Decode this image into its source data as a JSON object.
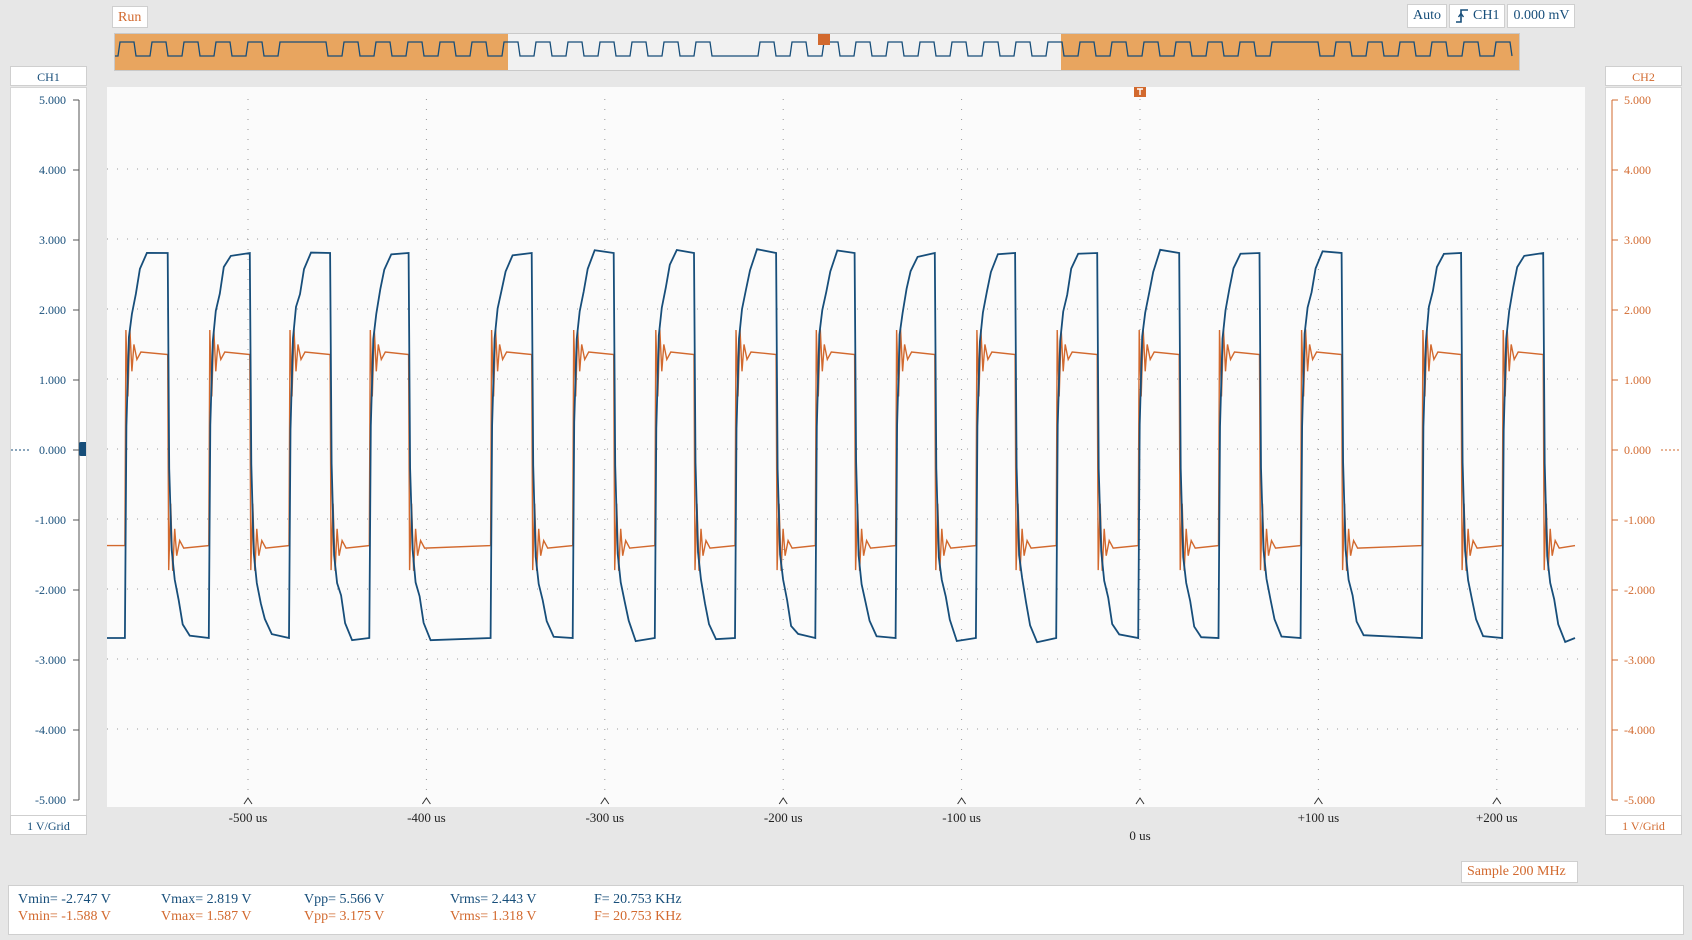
{
  "status": {
    "run_label": "Run"
  },
  "trigger": {
    "mode": "Auto",
    "source": "CH1",
    "level": "0.000 mV"
  },
  "channels": {
    "ch1": {
      "label": "CH1",
      "scale": "1 V/Grid",
      "color": "#174e7a"
    },
    "ch2": {
      "label": "CH2",
      "scale": "1 V/Grid",
      "color": "#d2692e"
    }
  },
  "y_axis_ticks": [
    "5.000",
    "4.000",
    "3.000",
    "2.000",
    "1.000",
    "0.000",
    "-1.000",
    "-2.000",
    "-3.000",
    "-4.000",
    "-5.000"
  ],
  "x_axis_ticks": [
    "-500 us",
    "-400 us",
    "-300 us",
    "-200 us",
    "-100 us",
    "0 us",
    "+100 us",
    "+200 us"
  ],
  "sample_rate": "Sample 200 MHz",
  "measurements": {
    "ch1": {
      "vmin": "Vmin= -2.747 V",
      "vmax": "Vmax= 2.819 V",
      "vpp": "Vpp= 5.566 V",
      "vrms": "Vrms= 2.443 V",
      "freq": "F= 20.753 KHz"
    },
    "ch2": {
      "vmin": "Vmin= -1.588 V",
      "vmax": "Vmax= 1.587 V",
      "vpp": "Vpp= 3.175 V",
      "vrms": "Vrms= 1.318 V",
      "freq": "F= 20.753 KHz"
    }
  },
  "chart_data": {
    "type": "line",
    "xlim_us": [
      -575,
      245
    ],
    "ylim": [
      -5,
      5
    ],
    "series": [
      {
        "name": "CH1",
        "color": "#174e7a",
        "high_v": 2.8,
        "low_v": -2.7,
        "rising_edges_us": [
          -569,
          -522,
          -477,
          -432,
          -364,
          -318,
          -272,
          -227,
          -182,
          -137,
          -92,
          -47,
          -1,
          44,
          90,
          158,
          203
        ],
        "falling_edges_us": [
          -545,
          -499,
          -454,
          -410,
          -341,
          -295,
          -250,
          -204,
          -160,
          -115,
          -70,
          -24,
          22,
          67,
          113,
          180,
          226
        ]
      },
      {
        "name": "CH2",
        "color": "#d2692e",
        "high_v": 1.35,
        "low_v": -1.38,
        "rising_edges_us": [
          -569,
          -522,
          -477,
          -432,
          -364,
          -318,
          -272,
          -227,
          -182,
          -137,
          -92,
          -47,
          -1,
          44,
          90,
          158,
          203
        ],
        "falling_edges_us": [
          -545,
          -499,
          -454,
          -410,
          -341,
          -295,
          -250,
          -204,
          -160,
          -115,
          -70,
          -24,
          22,
          67,
          113,
          180,
          226
        ]
      }
    ]
  }
}
